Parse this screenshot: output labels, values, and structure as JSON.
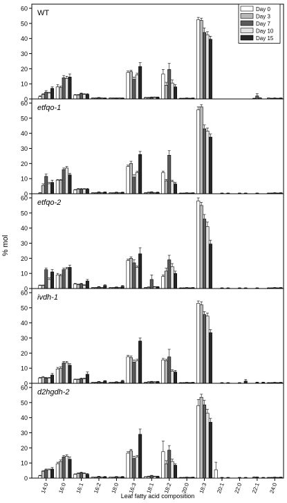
{
  "chart_data": [
    {
      "type": "bar",
      "title": "WT",
      "title_italic": false,
      "ylim": [
        0,
        60
      ],
      "yticks": [
        0,
        10,
        20,
        30,
        40,
        50,
        60
      ],
      "categories": [
        "14:0",
        "16:0",
        "16:1",
        "16:2",
        "18:0",
        "16:3",
        "18:1",
        "18:2",
        "20:0",
        "18:3",
        "20:1",
        "22:0",
        "22:1",
        "24:0"
      ],
      "series": [
        {
          "name": "Day 0",
          "values": [
            1.5,
            8,
            2.5,
            0.5,
            0.5,
            17.5,
            0.8,
            16.5,
            0.3,
            52.5,
            0,
            0,
            0,
            0.5
          ]
        },
        {
          "name": "Day 3",
          "values": [
            3,
            7.5,
            2.5,
            0.5,
            0.5,
            18,
            0.8,
            9,
            0.3,
            52,
            0,
            0,
            0.3,
            0.3
          ]
        },
        {
          "name": "Day 7",
          "values": [
            4.5,
            14,
            3.5,
            0.8,
            0.5,
            13,
            1,
            19.5,
            0.5,
            44,
            0,
            0,
            2,
            0.5
          ]
        },
        {
          "name": "Day 10",
          "values": [
            4,
            13.5,
            3,
            0.5,
            0.5,
            16,
            1,
            10.5,
            0.3,
            42.5,
            0,
            0,
            0.5,
            0.3
          ]
        },
        {
          "name": "Day 15",
          "values": [
            7,
            14.5,
            3,
            0.5,
            0.5,
            21.5,
            1,
            8,
            0.5,
            39.5,
            0,
            0,
            0,
            0.5
          ]
        }
      ],
      "errors": [
        [
          0.5,
          1.5,
          0.5,
          0.2,
          0.2,
          1,
          0.3,
          3,
          0.2,
          1.5,
          0,
          0,
          0,
          0.2
        ],
        [
          0.5,
          1,
          0.5,
          0.2,
          0.2,
          1,
          0.3,
          2,
          0.2,
          1.5,
          0,
          0,
          0.2,
          0.2
        ],
        [
          1,
          1.5,
          0.5,
          0.2,
          0.2,
          1.5,
          0.3,
          4,
          0.2,
          3,
          0,
          0,
          1.5,
          0.2
        ],
        [
          0.5,
          1.5,
          0.5,
          0.2,
          0.2,
          1,
          0.3,
          2,
          0.2,
          2,
          0,
          0,
          0.3,
          0.2
        ],
        [
          1,
          2,
          0.5,
          0.2,
          0.2,
          2.5,
          0.3,
          1.5,
          0.2,
          2,
          0,
          0,
          0,
          0.2
        ]
      ]
    },
    {
      "type": "bar",
      "title": "etfqo-1",
      "title_italic": true,
      "ylim": [
        0,
        60
      ],
      "yticks": [
        0,
        10,
        20,
        30,
        40,
        50,
        60
      ],
      "categories": [
        "14:0",
        "16:0",
        "16:1",
        "16:2",
        "18:0",
        "16:3",
        "18:1",
        "18:2",
        "20:0",
        "18:3",
        "20:1",
        "22:0",
        "22:1",
        "24:0"
      ],
      "series": [
        {
          "name": "Day 0",
          "values": [
            0.5,
            9,
            2.5,
            0.5,
            0.5,
            18,
            0.5,
            14,
            0.3,
            55.5,
            0,
            0,
            0,
            0.3
          ]
        },
        {
          "name": "Day 3",
          "values": [
            5.5,
            9,
            3,
            0.5,
            0.5,
            20,
            0.8,
            8.5,
            0.3,
            57.5,
            0,
            0,
            0,
            0.3
          ]
        },
        {
          "name": "Day 7",
          "values": [
            11.5,
            16,
            3,
            1,
            0.8,
            11,
            1,
            25.5,
            0.5,
            43,
            0.3,
            0.3,
            0.3,
            0.5
          ]
        },
        {
          "name": "Day 10",
          "values": [
            6.5,
            17,
            3,
            0.5,
            0.5,
            14,
            0.5,
            8,
            0.3,
            41.5,
            0,
            0,
            0,
            0.3
          ]
        },
        {
          "name": "Day 15",
          "values": [
            7.5,
            12.5,
            3,
            1,
            0.8,
            26,
            0.8,
            6.5,
            0.5,
            37.5,
            0.3,
            0.3,
            0,
            0.5
          ]
        }
      ],
      "errors": [
        [
          0.2,
          0.5,
          0.3,
          0.2,
          0.2,
          1,
          0.2,
          1,
          0.2,
          2,
          0,
          0,
          0,
          0.2
        ],
        [
          1,
          0.5,
          0.5,
          0.2,
          0.2,
          1.5,
          0.3,
          1,
          0.2,
          1.5,
          0,
          0,
          0,
          0.2
        ],
        [
          1.5,
          1,
          0.5,
          0.2,
          0.3,
          1.5,
          0.3,
          3,
          0.2,
          2.5,
          0.2,
          0.2,
          0.2,
          0.2
        ],
        [
          1,
          1,
          0.5,
          0.2,
          0.2,
          1,
          0.2,
          1,
          0.2,
          2,
          0,
          0,
          0,
          0.2
        ],
        [
          1.5,
          1,
          0.5,
          0.2,
          0.3,
          2,
          0.3,
          1,
          0.2,
          2,
          0.2,
          0.2,
          0,
          0.2
        ]
      ]
    },
    {
      "type": "bar",
      "title": "etfqo-2",
      "title_italic": true,
      "ylim": [
        0,
        60
      ],
      "yticks": [
        0,
        10,
        20,
        30,
        40,
        50,
        60
      ],
      "categories": [
        "14:0",
        "16:0",
        "16:1",
        "16:2",
        "18:0",
        "16:3",
        "18:1",
        "18:2",
        "20:0",
        "18:3",
        "20:1",
        "22:0",
        "22:1",
        "24:0"
      ],
      "series": [
        {
          "name": "Day 0",
          "values": [
            2,
            9,
            3,
            0.5,
            0.5,
            18.5,
            0.5,
            8,
            0.3,
            58,
            0,
            0,
            0,
            0.3
          ]
        },
        {
          "name": "Day 3",
          "values": [
            2,
            8.5,
            2.5,
            0.5,
            0.5,
            20,
            0.8,
            11.5,
            0.3,
            55,
            0,
            0,
            0,
            0.3
          ]
        },
        {
          "name": "Day 7",
          "values": [
            12.5,
            12.5,
            3,
            1,
            0.8,
            17,
            6,
            19,
            0.5,
            46,
            0.3,
            0.3,
            0.3,
            0.5
          ]
        },
        {
          "name": "Day 10",
          "values": [
            6,
            13,
            2,
            0.5,
            0.5,
            14,
            1,
            14.5,
            0.3,
            41,
            0,
            0,
            0,
            0.3
          ]
        },
        {
          "name": "Day 15",
          "values": [
            11,
            14,
            5,
            2,
            1.5,
            23,
            1,
            10,
            0.5,
            29.5,
            0.3,
            0.3,
            0,
            0.5
          ]
        }
      ],
      "errors": [
        [
          0.3,
          1,
          0.5,
          0.2,
          0.2,
          1,
          0.2,
          1,
          0.2,
          2,
          0,
          0,
          0,
          0.2
        ],
        [
          0.3,
          1,
          0.5,
          0.2,
          0.2,
          1,
          0.3,
          2,
          0.2,
          2,
          0,
          0,
          0,
          0.2
        ],
        [
          1,
          1,
          0.5,
          0.3,
          0.3,
          2,
          3,
          3,
          0.2,
          3,
          0.2,
          0.2,
          0.2,
          0.2
        ],
        [
          1,
          1,
          0.5,
          0.2,
          0.2,
          1,
          0.3,
          2,
          0.2,
          3,
          0,
          0,
          0,
          0.2
        ],
        [
          1.5,
          1.5,
          1,
          0.5,
          0.5,
          4,
          0.3,
          1.5,
          0.2,
          2.5,
          0.2,
          0.2,
          0,
          0.2
        ]
      ]
    },
    {
      "type": "bar",
      "title": "ivdh-1",
      "title_italic": true,
      "ylim": [
        0,
        60
      ],
      "yticks": [
        0,
        10,
        20,
        30,
        40,
        50,
        60
      ],
      "categories": [
        "14:0",
        "16:0",
        "16:1",
        "16:2",
        "18:0",
        "16:3",
        "18:1",
        "18:2",
        "20:0",
        "18:3",
        "20:1",
        "22:0",
        "22:1",
        "24:0"
      ],
      "series": [
        {
          "name": "Day 0",
          "values": [
            3.5,
            9.5,
            2.5,
            0.5,
            0.5,
            17.5,
            0.5,
            15.5,
            0.3,
            53,
            0,
            0,
            0,
            0.3
          ]
        },
        {
          "name": "Day 3",
          "values": [
            4,
            10,
            2.5,
            0.5,
            0.5,
            17,
            0.8,
            15,
            0.3,
            52,
            0,
            0,
            0,
            0.3
          ]
        },
        {
          "name": "Day 7",
          "values": [
            3.5,
            13.5,
            3,
            1,
            0.8,
            14,
            1,
            17.5,
            0.5,
            45.5,
            0.3,
            0.3,
            0.5,
            0.5
          ]
        },
        {
          "name": "Day 10",
          "values": [
            3.5,
            13.5,
            3,
            0.5,
            0.5,
            15,
            0.8,
            8,
            0.3,
            44.5,
            0,
            0,
            0,
            0.3
          ]
        },
        {
          "name": "Day 15",
          "values": [
            5.5,
            12,
            6,
            1.5,
            1.5,
            28,
            1,
            7.5,
            0.5,
            33.5,
            0.3,
            1.5,
            0.5,
            0.5
          ]
        }
      ],
      "errors": [
        [
          0.5,
          1,
          0.3,
          0.2,
          0.2,
          1,
          0.2,
          1,
          0.2,
          1.5,
          0,
          0,
          0,
          0.2
        ],
        [
          0.5,
          1,
          0.3,
          0.2,
          0.2,
          1,
          0.3,
          1,
          0.2,
          2,
          0,
          0,
          0,
          0.2
        ],
        [
          0.5,
          1,
          0.5,
          0.2,
          0.3,
          1.5,
          0.3,
          5,
          0.2,
          2,
          0.2,
          0.2,
          0.3,
          0.2
        ],
        [
          0.5,
          1,
          0.5,
          0.2,
          0.2,
          1,
          0.3,
          1,
          0.2,
          2,
          0,
          0,
          0,
          0.2
        ],
        [
          1,
          1,
          1.5,
          0.3,
          0.5,
          2,
          0.3,
          1,
          0.2,
          2,
          0.2,
          1,
          0.3,
          0.2
        ]
      ]
    },
    {
      "type": "bar",
      "title": "d2hgdh-2",
      "title_italic": true,
      "ylim": [
        0,
        60
      ],
      "yticks": [
        0,
        10,
        20,
        30,
        40,
        50,
        60
      ],
      "categories": [
        "14:0",
        "16:0",
        "16:1",
        "16:2",
        "18:0",
        "16:3",
        "18:1",
        "18:2",
        "20:0",
        "18:3",
        "20:1",
        "22:0",
        "22:1",
        "24:0"
      ],
      "series": [
        {
          "name": "Day 0",
          "values": [
            1.5,
            9.5,
            2.5,
            0.5,
            0.5,
            16.5,
            0.8,
            17.5,
            0.3,
            48,
            5.5,
            0,
            0,
            0.3
          ]
        },
        {
          "name": "Day 3",
          "values": [
            4.5,
            11,
            3,
            0.5,
            0.5,
            18,
            1,
            9.5,
            0.3,
            53.5,
            0,
            0,
            0.5,
            0.3
          ]
        },
        {
          "name": "Day 7",
          "values": [
            5.5,
            14,
            3.5,
            1,
            0.8,
            13,
            1.5,
            18.5,
            0.5,
            48.5,
            0.3,
            0.3,
            0.5,
            0.5
          ]
        },
        {
          "name": "Day 10",
          "values": [
            5.5,
            14.5,
            3,
            0.5,
            0.5,
            14,
            1,
            11,
            0.3,
            43,
            0,
            0,
            0,
            0.3
          ]
        },
        {
          "name": "Day 15",
          "values": [
            6,
            12.5,
            2.5,
            0.8,
            0.8,
            29,
            1,
            8.5,
            0.5,
            37,
            0.3,
            0.3,
            0.3,
            0.5
          ]
        }
      ],
      "errors": [
        [
          0.3,
          1,
          0.3,
          0.2,
          0.2,
          1,
          0.2,
          7,
          0.2,
          4,
          5,
          0,
          0,
          0.2
        ],
        [
          0.5,
          1,
          0.5,
          0.2,
          0.2,
          1,
          0.3,
          2,
          0.2,
          2,
          0,
          0,
          0.3,
          0.2
        ],
        [
          0.5,
          1,
          0.5,
          0.2,
          0.3,
          1.5,
          0.3,
          3,
          0.2,
          3,
          0.2,
          0.2,
          0.3,
          0.2
        ],
        [
          0.5,
          1,
          0.5,
          0.2,
          0.2,
          1,
          0.3,
          1.5,
          0.2,
          2.5,
          0,
          0,
          0,
          0.2
        ],
        [
          1,
          1.5,
          0.5,
          0.3,
          0.3,
          3.5,
          0.3,
          1,
          0.2,
          2.5,
          0.2,
          0.2,
          0.2,
          0.2
        ]
      ]
    }
  ],
  "legend": {
    "position": "top-right",
    "items": [
      {
        "label": "Day 0",
        "color": "#ffffff"
      },
      {
        "label": "Day 3",
        "color": "#b8b8b8"
      },
      {
        "label": "Day 7",
        "color": "#5a5a5a"
      },
      {
        "label": "Day 10",
        "color": "#e2e2e2"
      },
      {
        "label": "Day 15",
        "color": "#262626"
      }
    ]
  },
  "ylabel": "% mol",
  "xlabel": "Leaf fatty acid composition",
  "series_colors": [
    "#ffffff",
    "#b8b8b8",
    "#5a5a5a",
    "#e2e2e2",
    "#262626"
  ]
}
